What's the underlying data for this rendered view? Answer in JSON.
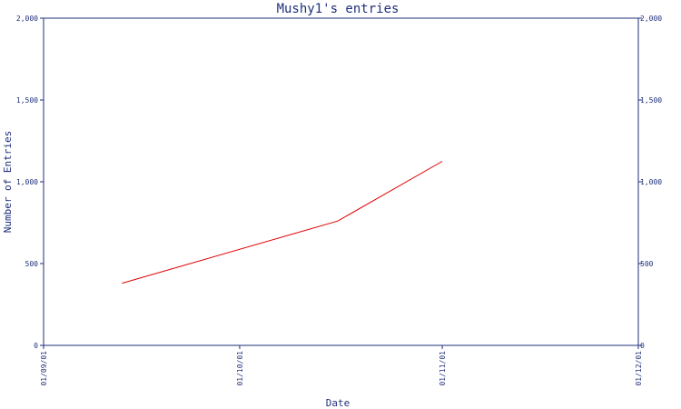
{
  "chart_data": {
    "type": "line",
    "title": "Mushy1's entries",
    "xlabel": "Date",
    "ylabel": "Number of Entries",
    "x_ticks": [
      "01/09/01",
      "01/10/01",
      "01/11/01",
      "01/12/01"
    ],
    "y_ticks": [
      "0",
      "500",
      "1,000",
      "1,500",
      "2,000"
    ],
    "y_tick_values": [
      0,
      500,
      1000,
      1500,
      2000
    ],
    "xlim": [
      "01/09/01",
      "01/12/01"
    ],
    "ylim": [
      0,
      2000
    ],
    "right_axis_mirrored": true,
    "grid": false,
    "colors": {
      "axis": "#1f2f7a",
      "series": "#e00000",
      "background": "#ffffff"
    },
    "series": [
      {
        "x": [
          "2001-09-13",
          "2001-10-16",
          "2001-11-01"
        ],
        "y": [
          380,
          760,
          1125
        ]
      }
    ]
  }
}
